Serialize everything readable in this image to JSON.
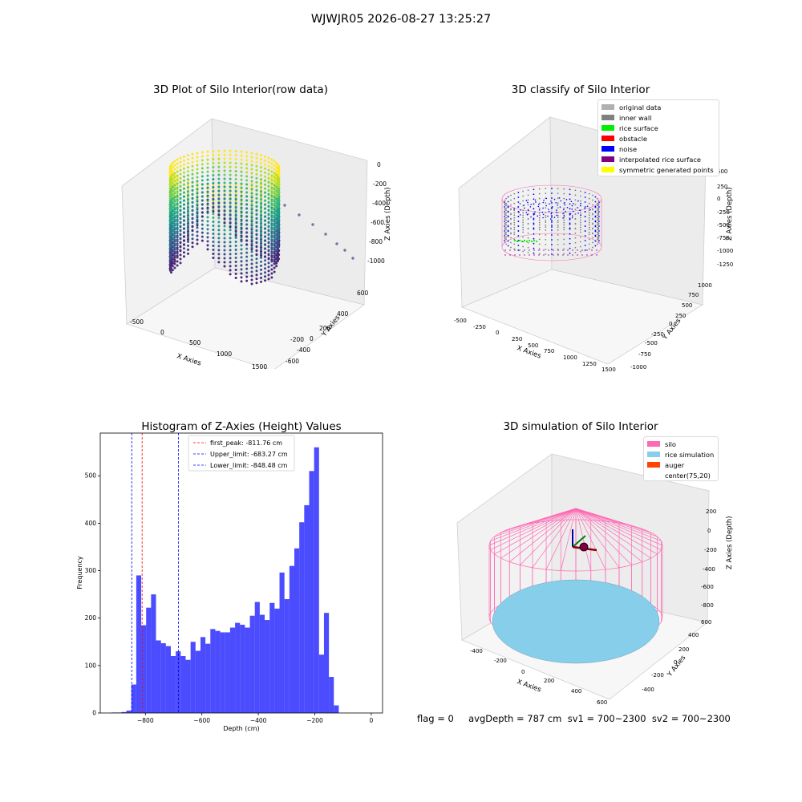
{
  "suptitle": "WJWJR05 2026-08-27 13:25:27",
  "panels": {
    "raw": {
      "title": "3D Plot of Silo Interior(row data)",
      "xlabel": "X Axies",
      "ylabel": "Y Axies",
      "zlabel": "Z Axies (Depth)",
      "xticks": [
        "-500",
        "0",
        "500",
        "1000",
        "1500"
      ],
      "yticks": [
        "600",
        "400",
        "200",
        "0",
        "-200",
        "-400",
        "-600"
      ],
      "zticks": [
        "0",
        "-200",
        "-400",
        "-600",
        "-800",
        "-1000"
      ]
    },
    "classify": {
      "title": "3D classify of Silo Interior",
      "xlabel": "X Axies",
      "ylabel": "Y Axies",
      "zlabel": "Z Axies (Depth)",
      "xticks": [
        "-500",
        "-250",
        "0",
        "250",
        "500",
        "750",
        "1000",
        "1250",
        "1500"
      ],
      "yticks": [
        "1000",
        "750",
        "500",
        "250",
        "0",
        "-250",
        "-500",
        "-750",
        "-1000"
      ],
      "zticks": [
        "500",
        "250",
        "0",
        "-250",
        "-500",
        "-750",
        "-1000",
        "-1250"
      ],
      "legend": [
        {
          "label": "original data",
          "color": "#b0b0b0"
        },
        {
          "label": "inner wall",
          "color": "#808080"
        },
        {
          "label": "rice surface",
          "color": "#00ee00"
        },
        {
          "label": "obstacle",
          "color": "#ff0000"
        },
        {
          "label": "noise",
          "color": "#0000ff"
        },
        {
          "label": "interpolated rice surface",
          "color": "#800080"
        },
        {
          "label": "symmetric generated points",
          "color": "#ffff00"
        }
      ]
    },
    "simulation": {
      "title": "3D simulation of Silo Interior",
      "xlabel": "X Axies",
      "ylabel": "Y Axies",
      "zlabel": "Z Axies (Depth)",
      "xticks": [
        "-400",
        "-200",
        "0",
        "200",
        "400",
        "600"
      ],
      "yticks": [
        "600",
        "400",
        "200",
        "0",
        "-200",
        "-400"
      ],
      "zticks": [
        "200",
        "0",
        "-200",
        "-400",
        "-600",
        "-800"
      ],
      "legend": [
        {
          "label": "silo",
          "color": "#ff69b4"
        },
        {
          "label": "rice simulation",
          "color": "#87ceeb"
        },
        {
          "label": "auger",
          "color": "#ff4500"
        },
        {
          "label": "center(75,20)",
          "color": ""
        }
      ]
    }
  },
  "footer": "flag = 0     avgDepth = 787 cm  sv1 = 700~2300  sv2 = 700~2300",
  "colors": {
    "bars": "#0000ff",
    "peak_line": "#ff0000",
    "limit_line": "#0000ff",
    "silo": "#ff69b4",
    "rice": "#87ceeb",
    "noise": "#0000ff"
  },
  "chart_data": [
    {
      "type": "bar",
      "title": "Histogram of Z-Axies (Height) Values",
      "xlabel": "Depth (cm)",
      "ylabel": "Frequency",
      "xlim": [
        -960,
        40
      ],
      "ylim": [
        0,
        590
      ],
      "xticks": [
        -800,
        -600,
        -400,
        -200,
        0
      ],
      "yticks": [
        0,
        100,
        200,
        300,
        400,
        500
      ],
      "bin_start": -920,
      "bin_width": 17.5,
      "values": [
        1,
        1,
        2,
        5,
        60,
        290,
        185,
        222,
        250,
        153,
        147,
        141,
        120,
        130,
        120,
        112,
        150,
        131,
        160,
        146,
        177,
        173,
        170,
        170,
        180,
        190,
        186,
        180,
        205,
        234,
        207,
        196,
        232,
        220,
        296,
        240,
        310,
        347,
        402,
        438,
        510,
        560,
        123,
        211,
        76,
        16
      ],
      "lines": [
        {
          "label": "first_peak: -811.76 cm",
          "x": -811.76,
          "color": "#ff0000"
        },
        {
          "label": "Upper_limit: -683.27 cm",
          "x": -683.27,
          "color": "#0000ff"
        },
        {
          "label": "Lower_limit: -848.48 cm",
          "x": -848.48,
          "color": "#0000ff"
        }
      ],
      "grid": false,
      "legend_position": "top-center"
    }
  ]
}
